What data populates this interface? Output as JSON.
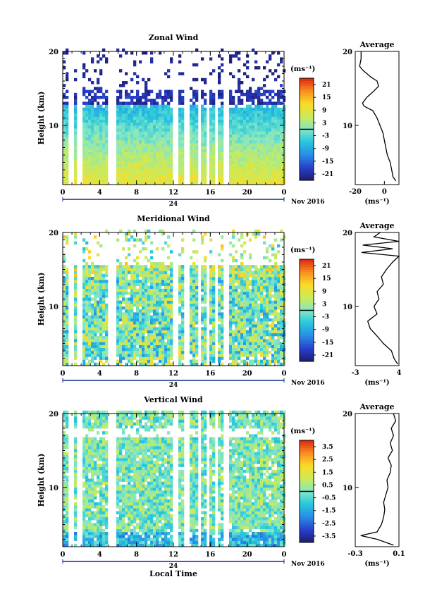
{
  "chart_data": [
    {
      "type": "heatmap",
      "title": "Zonal Wind",
      "ylabel": "Height (km)",
      "ylim": [
        2,
        20
      ],
      "x_ticks": [
        "0",
        "4",
        "8",
        "12",
        "16",
        "20",
        "0"
      ],
      "y_ticks": [
        "20",
        "10"
      ],
      "colorbar": {
        "unit": "(ms⁻¹)",
        "ticks": [
          "21",
          "15",
          "9",
          "3",
          "-3",
          "-9",
          "-15",
          "-21"
        ],
        "range": [
          -24,
          24
        ]
      },
      "average": {
        "title": "Average",
        "x_ticks": [
          "-20",
          "0"
        ],
        "xlim": [
          -20,
          10
        ],
        "xunit": "(ms⁻¹)",
        "y_ticks": [
          "20",
          "10"
        ],
        "profile": [
          [
            2.5,
            8
          ],
          [
            3,
            6
          ],
          [
            4,
            5
          ],
          [
            5,
            4
          ],
          [
            6,
            2
          ],
          [
            7,
            1
          ],
          [
            8,
            0
          ],
          [
            9,
            -1
          ],
          [
            10,
            -3
          ],
          [
            11,
            -5
          ],
          [
            12,
            -8
          ],
          [
            12.6,
            -14
          ],
          [
            13,
            -15
          ],
          [
            13.8,
            -12
          ],
          [
            14.5,
            -8
          ],
          [
            15.3,
            -4
          ],
          [
            16,
            -5
          ],
          [
            16.5,
            -9
          ],
          [
            17,
            -12
          ],
          [
            17.5,
            -15
          ],
          [
            18,
            -17
          ],
          [
            19,
            -16
          ],
          [
            20,
            -16
          ]
        ]
      }
    },
    {
      "type": "heatmap",
      "title": "Meridional Wind",
      "ylabel": "Height (km)",
      "ylim": [
        2,
        20
      ],
      "x_ticks": [
        "0",
        "4",
        "8",
        "12",
        "16",
        "20",
        "0"
      ],
      "y_ticks": [
        "20",
        "10"
      ],
      "colorbar": {
        "unit": "(ms⁻¹)",
        "ticks": [
          "21",
          "15",
          "9",
          "3",
          "-3",
          "-9",
          "-15",
          "-21"
        ],
        "range": [
          -24,
          24
        ]
      },
      "average": {
        "title": "Average",
        "x_ticks": [
          "-3",
          "4"
        ],
        "xlim": [
          -3,
          4
        ],
        "xunit": "(ms⁻¹)",
        "y_ticks": [
          "20",
          "10"
        ],
        "profile": [
          [
            2.2,
            3.8
          ],
          [
            3,
            3.2
          ],
          [
            4,
            2.8
          ],
          [
            5,
            1.5
          ],
          [
            6,
            0.5
          ],
          [
            7,
            -0.6
          ],
          [
            8,
            -1
          ],
          [
            9,
            0.5
          ],
          [
            10,
            0
          ],
          [
            11,
            0.8
          ],
          [
            12,
            0.5
          ],
          [
            13,
            1.5
          ],
          [
            14,
            1.2
          ],
          [
            15,
            2
          ],
          [
            16,
            3
          ],
          [
            16.8,
            4
          ],
          [
            17.3,
            -2
          ],
          [
            17.8,
            3
          ],
          [
            18.3,
            -1.8
          ],
          [
            18.8,
            4
          ],
          [
            19.4,
            0
          ],
          [
            20,
            1
          ]
        ]
      }
    },
    {
      "type": "heatmap",
      "title": "Vertical Wind",
      "ylabel": "Height (km)",
      "xlabel": "Local Time",
      "ylim": [
        2,
        20
      ],
      "x_ticks": [
        "0",
        "4",
        "8",
        "12",
        "16",
        "20",
        "0"
      ],
      "y_ticks": [
        "20",
        "10"
      ],
      "colorbar": {
        "unit": "(ms⁻¹)",
        "ticks": [
          "3.5",
          "2.5",
          "1.5",
          "0.5",
          "-0.5",
          "-1.5",
          "-2.5",
          "-3.5"
        ],
        "range": [
          -4,
          4
        ]
      },
      "average": {
        "title": "Average",
        "x_ticks": [
          "-0.3",
          "0.1"
        ],
        "xlim": [
          -0.3,
          0.1
        ],
        "xunit": "(ms⁻¹)",
        "y_ticks": [
          "20",
          "10"
        ],
        "profile": [
          [
            2.2,
            0.05
          ],
          [
            3,
            -0.1
          ],
          [
            3.5,
            -0.25
          ],
          [
            4,
            -0.1
          ],
          [
            5,
            -0.06
          ],
          [
            6,
            -0.04
          ],
          [
            7,
            -0.03
          ],
          [
            8,
            -0.04
          ],
          [
            9,
            -0.02
          ],
          [
            10,
            0
          ],
          [
            11,
            -0.01
          ],
          [
            12,
            0.02
          ],
          [
            13,
            0.03
          ],
          [
            14,
            0
          ],
          [
            15,
            0.04
          ],
          [
            16,
            0.02
          ],
          [
            17,
            0.05
          ],
          [
            18,
            0.03
          ],
          [
            19,
            0.07
          ],
          [
            20,
            0.05
          ]
        ]
      }
    }
  ],
  "date_axis": {
    "label": "24",
    "date": "Nov 2016"
  }
}
